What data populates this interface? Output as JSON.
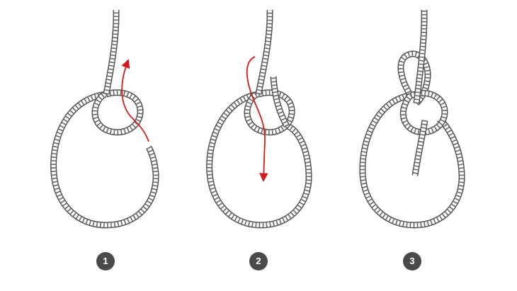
{
  "colors": {
    "rope_outline": "#555555",
    "rope_fill": "#ffffff",
    "rope_twist": "#666666",
    "arrow": "#d01c1c",
    "badge_bg": "#4a4a4a",
    "badge_text": "#ffffff"
  },
  "steps": [
    {
      "number": "1"
    },
    {
      "number": "2"
    },
    {
      "number": "3"
    }
  ]
}
